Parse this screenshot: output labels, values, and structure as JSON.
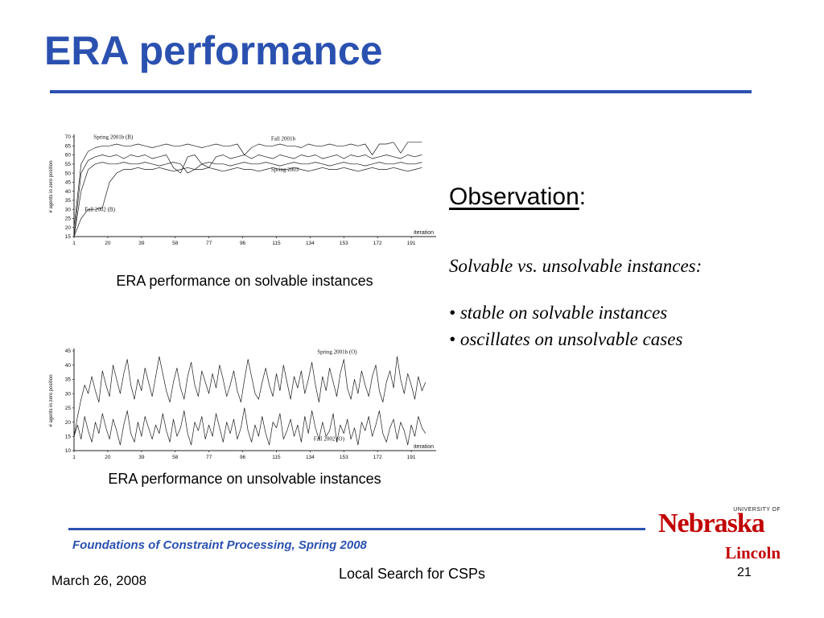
{
  "slide": {
    "title": "ERA performance",
    "captions": {
      "top": "ERA performance on solvable instances",
      "bottom": "ERA performance on unsolvable instances"
    },
    "observation": {
      "heading": "Observation",
      "colon": ":",
      "subtitle": "Solvable vs. unsolvable instances:",
      "bullet_char": "•",
      "bullets": [
        "stable on solvable instances",
        "oscillates on unsolvable cases"
      ]
    },
    "footer": {
      "course": "Foundations of Constraint Processing, Spring 2008",
      "date": "March 26, 2008",
      "center_title": "Local Search for CSPs",
      "page_number": "21"
    },
    "logo": {
      "university_of": "UNIVERSITY OF",
      "name": "Nebraska",
      "campus": "Lincoln"
    },
    "colors": {
      "accent_blue": "#2B51B0",
      "logo_red": "#C20000",
      "chart_line": "#1A1A1A"
    }
  },
  "chart_data": [
    {
      "type": "line",
      "title": "ERA performance on solvable instances",
      "xlabel": "iteration",
      "ylabel": "# agents in zero position",
      "xlim": [
        1,
        205
      ],
      "ylim": [
        15,
        70
      ],
      "xticks": [
        1,
        20,
        39,
        58,
        77,
        96,
        115,
        134,
        153,
        172,
        191
      ],
      "yticks": [
        15,
        20,
        25,
        30,
        35,
        40,
        45,
        50,
        55,
        60,
        65,
        70
      ],
      "x_start": 1,
      "x_step": 4,
      "grid": false,
      "series": [
        {
          "name": "Fall 2001b",
          "label_at": [
            112,
            68
          ],
          "values": [
            20,
            55,
            62,
            64,
            65,
            65,
            66,
            65,
            65,
            66,
            65,
            64,
            65,
            66,
            65,
            65,
            66,
            65,
            64,
            65,
            66,
            65,
            65,
            66,
            60,
            64,
            66,
            65,
            65,
            66,
            65,
            65,
            64,
            66,
            65,
            65,
            66,
            65,
            65,
            66,
            65,
            66,
            60,
            66,
            66,
            67,
            61,
            67,
            67,
            67
          ]
        },
        {
          "name": "Spring 2001b (B)",
          "label_at": [
            12,
            69
          ],
          "values": [
            15,
            50,
            57,
            59,
            60,
            59,
            60,
            58,
            60,
            59,
            60,
            58,
            59,
            60,
            53,
            50,
            59,
            60,
            55,
            53,
            59,
            60,
            58,
            59,
            60,
            58,
            60,
            59,
            58,
            60,
            59,
            58,
            60,
            59,
            60,
            58,
            59,
            60,
            58,
            60,
            59,
            60,
            58,
            59,
            60,
            59,
            58,
            60,
            59,
            60
          ]
        },
        {
          "name": "Spring 2003",
          "label_at": [
            112,
            51
          ],
          "values": [
            15,
            40,
            52,
            55,
            56,
            55,
            55,
            56,
            55,
            55,
            56,
            55,
            54,
            55,
            56,
            55,
            50,
            52,
            55,
            56,
            55,
            55,
            54,
            55,
            56,
            55,
            55,
            56,
            55,
            54,
            55,
            56,
            55,
            55,
            56,
            55,
            54,
            55,
            56,
            55,
            55,
            54,
            55,
            56,
            55,
            55,
            56,
            55,
            55,
            56
          ]
        },
        {
          "name": "Fall 2002 (B)",
          "label_at": [
            7,
            29
          ],
          "values": [
            15,
            25,
            30,
            30,
            31,
            45,
            50,
            52,
            52,
            53,
            52,
            52,
            53,
            52,
            51,
            52,
            53,
            52,
            52,
            53,
            52,
            51,
            52,
            53,
            52,
            52,
            51,
            52,
            53,
            52,
            52,
            53,
            52,
            51,
            52,
            53,
            52,
            52,
            53,
            52,
            51,
            52,
            53,
            52,
            52,
            53,
            52,
            51,
            52,
            53
          ]
        }
      ]
    },
    {
      "type": "line",
      "title": "ERA performance on unsolvable instances",
      "xlabel": "iteration",
      "ylabel": "# agents in zero position",
      "xlim": [
        1,
        205
      ],
      "ylim": [
        10,
        45
      ],
      "xticks": [
        1,
        20,
        39,
        58,
        77,
        96,
        115,
        134,
        153,
        172,
        191
      ],
      "yticks": [
        10,
        15,
        20,
        25,
        30,
        35,
        40,
        45
      ],
      "x_start": 1,
      "x_step": 2,
      "grid": false,
      "series": [
        {
          "name": "Spring 2001b (O)",
          "label_at": [
            138,
            44
          ],
          "values": [
            15,
            22,
            28,
            33,
            30,
            36,
            31,
            27,
            38,
            33,
            29,
            40,
            35,
            30,
            37,
            42,
            33,
            28,
            35,
            31,
            39,
            34,
            29,
            36,
            43,
            37,
            31,
            27,
            34,
            39,
            32,
            28,
            36,
            41,
            33,
            29,
            38,
            34,
            30,
            37,
            32,
            40,
            35,
            29,
            33,
            38,
            31,
            27,
            35,
            42,
            36,
            30,
            28,
            34,
            39,
            33,
            29,
            37,
            31,
            40,
            34,
            28,
            36,
            32,
            38,
            30,
            35,
            41,
            33,
            27,
            36,
            31,
            39,
            34,
            29,
            37,
            42,
            32,
            28,
            35,
            30,
            38,
            33,
            29,
            36,
            40,
            31,
            27,
            34,
            38,
            32,
            43,
            35,
            30,
            37,
            33,
            28,
            36,
            31,
            34
          ]
        },
        {
          "name": "Fall 2002 (O)",
          "label_at": [
            136,
            13.5
          ],
          "values": [
            15,
            19,
            14,
            22,
            17,
            13,
            20,
            16,
            23,
            18,
            14,
            21,
            17,
            12,
            19,
            24,
            16,
            13,
            20,
            15,
            22,
            18,
            14,
            19,
            16,
            23,
            17,
            13,
            21,
            15,
            18,
            24,
            16,
            12,
            20,
            17,
            22,
            14,
            19,
            15,
            23,
            18,
            13,
            20,
            16,
            21,
            14,
            18,
            25,
            17,
            13,
            19,
            15,
            22,
            16,
            12,
            20,
            18,
            23,
            14,
            17,
            21,
            15,
            19,
            13,
            22,
            16,
            24,
            18,
            14,
            20,
            15,
            17,
            23,
            13,
            19,
            16,
            21,
            14,
            18,
            12,
            20,
            17,
            22,
            15,
            19,
            24,
            16,
            13,
            18,
            21,
            14,
            20,
            17,
            12,
            19,
            15,
            22,
            18,
            16
          ]
        }
      ]
    }
  ]
}
